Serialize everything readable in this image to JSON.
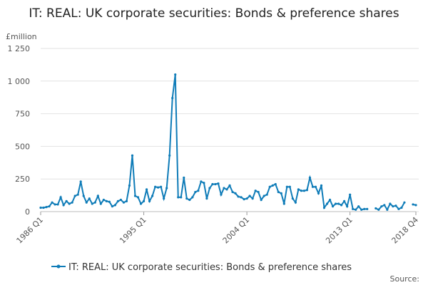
{
  "chart_data": {
    "type": "line",
    "title": "IT: REAL: UK corporate securities: Bonds & preference shares",
    "y_unit": "£million",
    "source": "Source:",
    "categories": [
      "1986 Q1",
      null,
      null,
      null,
      null,
      null,
      null,
      null,
      null,
      null,
      null,
      null,
      null,
      null,
      null,
      null,
      null,
      null,
      null,
      null,
      null,
      null,
      null,
      null,
      null,
      null,
      null,
      null,
      null,
      null,
      null,
      null,
      null,
      null,
      null,
      null,
      "1995 Q1",
      null,
      null,
      null,
      null,
      null,
      null,
      null,
      null,
      null,
      null,
      null,
      null,
      null,
      null,
      null,
      null,
      null,
      null,
      null,
      null,
      null,
      null,
      null,
      null,
      null,
      null,
      null,
      null,
      null,
      null,
      null,
      null,
      null,
      null,
      null,
      "2004 Q1",
      null,
      null,
      null,
      null,
      null,
      null,
      null,
      null,
      null,
      null,
      null,
      null,
      null,
      null,
      null,
      null,
      null,
      null,
      null,
      null,
      null,
      null,
      null,
      null,
      null,
      null,
      null,
      null,
      null,
      null,
      null,
      null,
      null,
      null,
      null,
      "2013 Q1",
      null,
      null,
      null,
      null,
      null,
      null,
      null,
      null,
      null,
      null,
      null,
      null,
      null,
      null,
      null,
      null,
      null,
      null,
      null,
      null,
      null,
      null,
      "2018 Q4"
    ],
    "series": [
      {
        "name": "IT: REAL: UK corporate securities: Bonds & preference shares",
        "color": "#0f7cb8",
        "values": [
          30,
          30,
          35,
          40,
          70,
          55,
          55,
          110,
          50,
          80,
          60,
          70,
          120,
          130,
          230,
          120,
          70,
          100,
          60,
          70,
          120,
          60,
          90,
          80,
          75,
          40,
          50,
          80,
          90,
          70,
          80,
          200,
          430,
          120,
          110,
          60,
          80,
          170,
          80,
          120,
          190,
          185,
          190,
          100,
          180,
          430,
          870,
          1050,
          110,
          110,
          260,
          100,
          90,
          110,
          150,
          160,
          230,
          220,
          100,
          180,
          210,
          210,
          215,
          130,
          180,
          170,
          200,
          150,
          140,
          115,
          110,
          95,
          100,
          120,
          100,
          160,
          150,
          90,
          120,
          130,
          190,
          200,
          210,
          150,
          140,
          60,
          190,
          190,
          100,
          70,
          170,
          160,
          160,
          165,
          260,
          190,
          190,
          140,
          200,
          30,
          60,
          90,
          40,
          60,
          60,
          50,
          80,
          40,
          130,
          20,
          15,
          40,
          15,
          20,
          20,
          null,
          null,
          25,
          15,
          40,
          50,
          15,
          60,
          40,
          45,
          20,
          30,
          70,
          null,
          null,
          55,
          50
        ]
      }
    ],
    "ylim": [
      0,
      1250
    ],
    "yticks": [
      0,
      250,
      500,
      750,
      {
        "value": 1000,
        "label": "1 000"
      },
      {
        "value": 1250,
        "label": "1 250"
      }
    ],
    "grid": true
  }
}
